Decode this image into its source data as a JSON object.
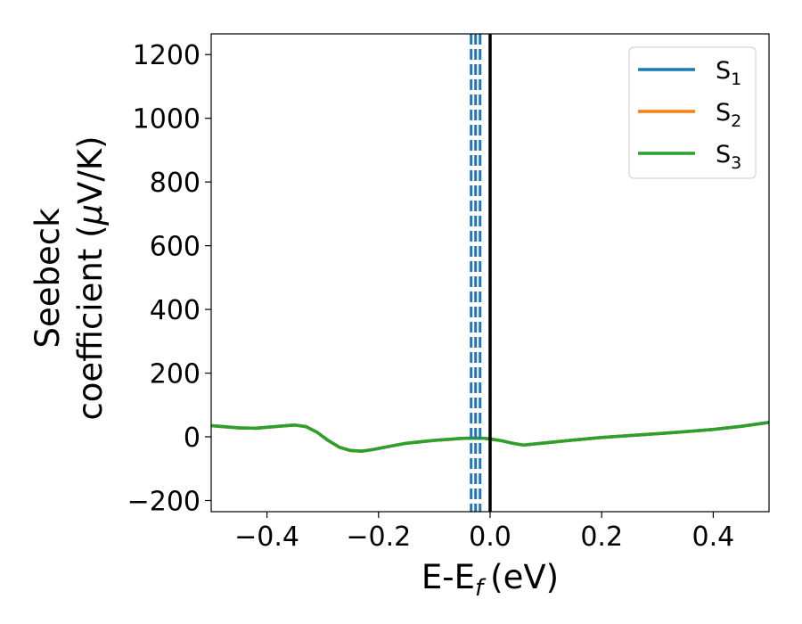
{
  "chart_data": {
    "type": "line",
    "xlabel": "E-E",
    "xlabel_sub": "f",
    "xlabel_unit": "(eV)",
    "ylabel_line1": "Seebeck",
    "ylabel_line2": "coefficient  (",
    "ylabel_mu": "μ",
    "ylabel_unit": "V/K)",
    "xlim": [
      -0.5,
      0.5
    ],
    "ylim": [
      -235,
      1265
    ],
    "xticks": [
      -0.4,
      -0.2,
      0.0,
      0.2,
      0.4
    ],
    "xtick_labels": [
      "−0.4",
      "−0.2",
      "0.0",
      "0.2",
      "0.4"
    ],
    "yticks": [
      -200,
      0,
      200,
      400,
      600,
      800,
      1000,
      1200
    ],
    "ytick_labels": [
      "−200",
      "0",
      "200",
      "400",
      "600",
      "800",
      "1000",
      "1200"
    ],
    "grid": false,
    "legend_position": "top-right",
    "fermi_line_x": 0.0,
    "dashed_lines_x": [
      -0.034,
      -0.026,
      -0.018
    ],
    "x": [
      -0.5,
      -0.45,
      -0.42,
      -0.38,
      -0.35,
      -0.33,
      -0.31,
      -0.29,
      -0.27,
      -0.25,
      -0.23,
      -0.21,
      -0.18,
      -0.15,
      -0.1,
      -0.05,
      -0.03,
      -0.01,
      0.0,
      0.02,
      0.04,
      0.06,
      0.1,
      0.15,
      0.2,
      0.25,
      0.3,
      0.35,
      0.4,
      0.45,
      0.5
    ],
    "series": [
      {
        "name": "S",
        "sub": "1",
        "color": "#1f77b4",
        "values": [
          35,
          28,
          27,
          33,
          37,
          32,
          14,
          -12,
          -33,
          -43,
          -45,
          -40,
          -30,
          -20,
          -11,
          -5,
          -4,
          -5,
          -7,
          -12,
          -20,
          -26,
          -19,
          -10,
          -2,
          4,
          10,
          16,
          23,
          33,
          45
        ]
      },
      {
        "name": "S",
        "sub": "2",
        "color": "#ff7f0e",
        "values": [
          35,
          28,
          27,
          33,
          37,
          32,
          14,
          -12,
          -33,
          -43,
          -45,
          -40,
          -30,
          -20,
          -11,
          -5,
          -4,
          -5,
          -7,
          -12,
          -20,
          -26,
          -19,
          -10,
          -2,
          4,
          10,
          16,
          23,
          33,
          45
        ]
      },
      {
        "name": "S",
        "sub": "3",
        "color": "#2ca02c",
        "values": [
          35,
          28,
          27,
          33,
          37,
          32,
          14,
          -12,
          -33,
          -43,
          -45,
          -40,
          -30,
          -20,
          -11,
          -5,
          -4,
          -5,
          -7,
          -12,
          -20,
          -26,
          -19,
          -10,
          -2,
          4,
          10,
          16,
          23,
          33,
          45
        ]
      }
    ]
  }
}
